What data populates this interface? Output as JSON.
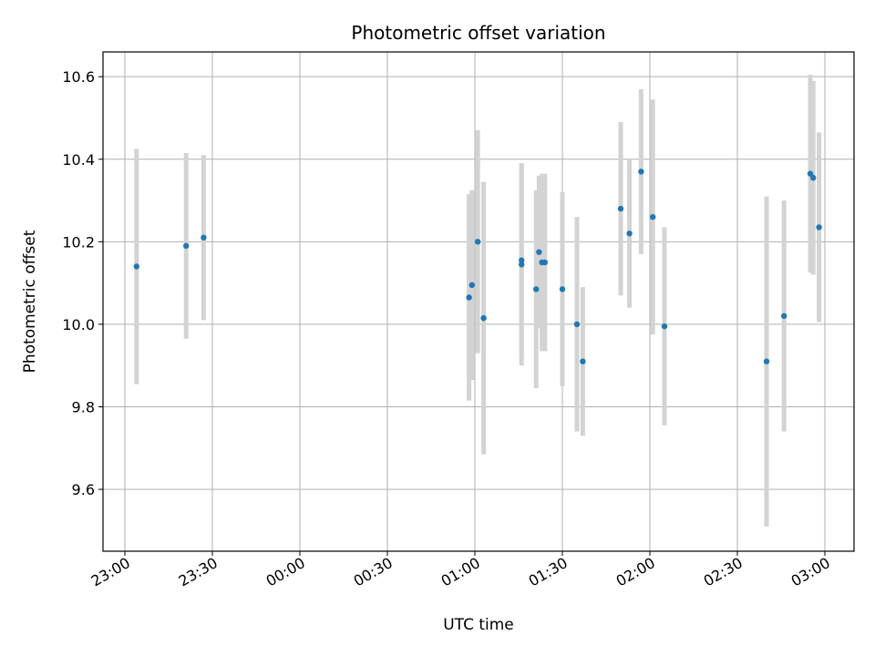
{
  "chart_data": {
    "type": "scatter",
    "title": "Photometric offset variation",
    "xlabel": "UTC time",
    "ylabel": "Photometric offset",
    "x_tick_labels": [
      "23:00",
      "23:30",
      "00:00",
      "00:30",
      "01:00",
      "01:30",
      "02:00",
      "02:30",
      "03:00"
    ],
    "x_ticks_minutes_from_2300": [
      0,
      30,
      60,
      90,
      120,
      150,
      180,
      210,
      240
    ],
    "xlim_minutes_from_2300": [
      -7.5,
      250
    ],
    "y_ticks": [
      9.6,
      9.8,
      10.0,
      10.2,
      10.4,
      10.6
    ],
    "ylim": [
      9.45,
      10.66
    ],
    "grid": true,
    "point_color": "#1f77b4",
    "errorbar_color": "#d3d3d3",
    "series": [
      {
        "x": [
          "23:04",
          "23:21",
          "23:27",
          "00:58",
          "00:59",
          "01:01",
          "01:03",
          "01:16",
          "01:16",
          "01:21",
          "01:22",
          "01:23",
          "01:24",
          "01:30",
          "01:35",
          "01:37",
          "01:50",
          "01:53",
          "01:57",
          "02:01",
          "02:05",
          "02:40",
          "02:46",
          "02:55",
          "02:56",
          "02:58"
        ],
        "y": [
          10.14,
          10.19,
          10.21,
          10.065,
          10.095,
          10.2,
          10.015,
          10.145,
          10.155,
          10.085,
          10.175,
          10.15,
          10.15,
          10.085,
          10.0,
          9.91,
          10.28,
          10.22,
          10.37,
          10.26,
          9.995,
          9.91,
          10.02,
          10.365,
          10.355,
          10.235
        ],
        "err": [
          0.285,
          0.225,
          0.2,
          0.25,
          0.23,
          0.27,
          0.33,
          0.245,
          0.235,
          0.24,
          0.185,
          0.215,
          0.215,
          0.235,
          0.26,
          0.18,
          0.21,
          0.18,
          0.2,
          0.285,
          0.24,
          0.4,
          0.28,
          0.24,
          0.235,
          0.23
        ]
      }
    ]
  }
}
